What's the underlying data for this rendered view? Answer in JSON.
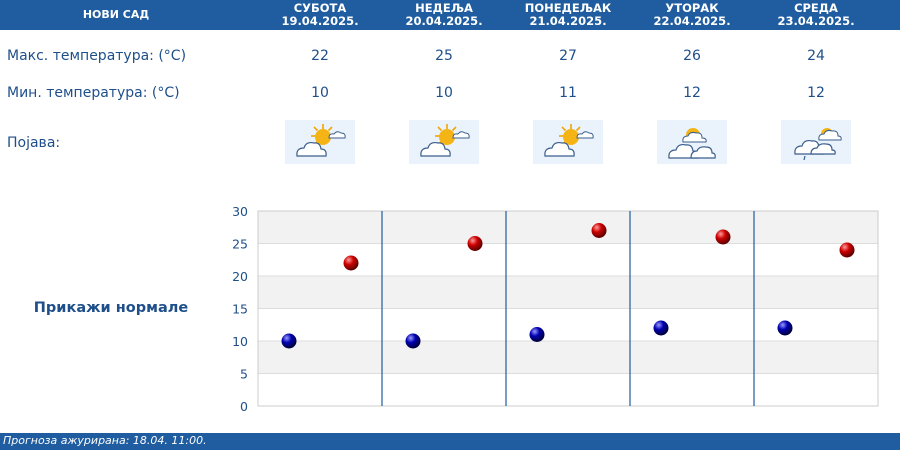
{
  "header": {
    "city": "НОВИ САД"
  },
  "days": [
    {
      "name": "СУБОТА",
      "date": "19.04.2025.",
      "max": "22",
      "min": "10",
      "icon": "sun-cloud-icon"
    },
    {
      "name": "НЕДЕЉА",
      "date": "20.04.2025.",
      "max": "25",
      "min": "10",
      "icon": "sun-cloud-icon"
    },
    {
      "name": "ПОНЕДЕЉАК",
      "date": "21.04.2025.",
      "max": "27",
      "min": "11",
      "icon": "sun-cloud-icon"
    },
    {
      "name": "УТОРАК",
      "date": "22.04.2025.",
      "max": "26",
      "min": "12",
      "icon": "cloud-sun-icon"
    },
    {
      "name": "СРЕДА",
      "date": "23.04.2025.",
      "max": "24",
      "min": "12",
      "icon": "cloud-drizzle-icon"
    }
  ],
  "labels": {
    "max_temp": "Макс. температура: (°C)",
    "min_temp": "Мин. температура: (°C)",
    "phenomenon": "Појава:"
  },
  "show_normals": "Прикажи нормале",
  "footer": {
    "updated": "Прогноза ажурирана:  18.04.  11:00."
  },
  "colors": {
    "header_bg": "#1f5da0",
    "text": "#1f4f8a",
    "max_marker": "#cc0000",
    "min_marker": "#0000b0",
    "divider": "#1f5da0"
  },
  "chart_data": {
    "type": "scatter",
    "categories": [
      "19.04.2025.",
      "20.04.2025.",
      "21.04.2025.",
      "22.04.2025.",
      "23.04.2025."
    ],
    "series": [
      {
        "values": [
          10,
          10,
          11,
          12,
          12
        ]
      },
      {
        "values": [
          22,
          25,
          27,
          26,
          24
        ]
      }
    ],
    "ylim": [
      0,
      30
    ],
    "yticks": [
      "0",
      "5",
      "10",
      "15",
      "20",
      "25",
      "30"
    ],
    "grid": true
  }
}
